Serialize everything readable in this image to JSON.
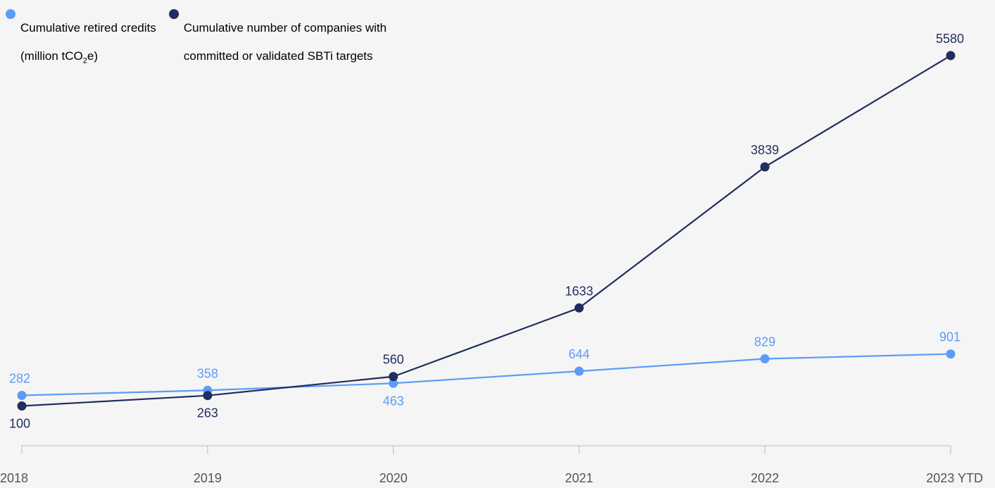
{
  "chart_data": {
    "type": "line",
    "categories": [
      "2018",
      "2019",
      "2020",
      "2021",
      "2022",
      "2023 YTD"
    ],
    "series": [
      {
        "name": "Cumulative retired credits (million tCO2e)",
        "legend_line1": "Cumulative retired credits",
        "legend_line2_prefix": "(million tCO",
        "legend_line2_sub": "2",
        "legend_line2_suffix": "e)",
        "values": [
          282,
          358,
          463,
          644,
          829,
          901
        ],
        "label_positions": [
          "above",
          "above",
          "below",
          "above",
          "above",
          "above"
        ],
        "color": "#5b9cf6"
      },
      {
        "name": "Cumulative number of companies with committed or validated SBTi targets",
        "legend_line1": "Cumulative number of companies with",
        "legend_line2": "committed or validated SBTi targets",
        "values": [
          100,
          263,
          560,
          1633,
          3839,
          5580
        ],
        "label_positions": [
          "below",
          "below",
          "above",
          "above",
          "above",
          "above"
        ],
        "color": "#1f2e5e"
      }
    ],
    "axis_color": "#bbbbbb",
    "grid": false,
    "legend_position": "top-left"
  }
}
